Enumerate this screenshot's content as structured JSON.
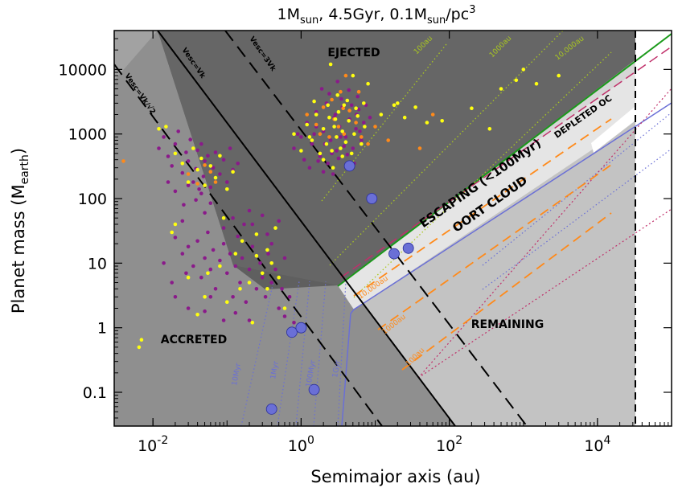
{
  "title": {
    "main": "1M",
    "sub1": "sun",
    "mid": ", 4.5Gyr, 0.1M",
    "sub2": "sun",
    "tail": "/pc",
    "sup": "3"
  },
  "chart_data": {
    "type": "scatter",
    "title": "1M_sun, 4.5Gyr, 0.1M_sun/pc^3",
    "xlabel": "Semimajor axis (au)",
    "ylabel_main": "Planet mass (M",
    "ylabel_sub": "earth",
    "ylabel_close": ")",
    "xscale": "log",
    "yscale": "log",
    "xlim": [
      0.003,
      100000
    ],
    "ylim": [
      0.03,
      40000
    ],
    "x_ticks": [
      {
        "base": "10",
        "exp": "-2",
        "value": 0.01
      },
      {
        "base": "10",
        "exp": "0",
        "value": 1
      },
      {
        "base": "10",
        "exp": "2",
        "value": 100
      },
      {
        "base": "10",
        "exp": "4",
        "value": 10000
      }
    ],
    "y_ticks": [
      {
        "label": "0.1",
        "value": 0.1
      },
      {
        "label": "1",
        "value": 1
      },
      {
        "label": "10",
        "value": 10
      },
      {
        "label": "100",
        "value": 100
      },
      {
        "label": "1000",
        "value": 1000
      },
      {
        "label": "10000",
        "value": 10000
      }
    ],
    "regions": {
      "ejected": "EJECTED",
      "escaping": "ESCAPING (<100Myr)",
      "depleted": "DEPLETED OC",
      "oort": "OORT CLOUD",
      "remaining": "REMAINING",
      "accreted": "ACCRETED"
    },
    "line_labels": {
      "vesc_vk": "Vesc=Vk",
      "vesc_3vk": "Vesc=3Vk",
      "vesc_vk_sqrt2": "Vesc=Vk/√2",
      "green": [
        "100au",
        "1000au",
        "10,000au"
      ],
      "orange": [
        "10,000au",
        "1000au",
        "100au"
      ],
      "blue": [
        "10Myr",
        "1Myr",
        "100Myr",
        "1Gyr"
      ]
    },
    "series": [
      {
        "name": "blue_planets",
        "color": "#6a6fd6",
        "points": [
          [
            0.4,
            0.055
          ],
          [
            0.75,
            0.85
          ],
          [
            1.0,
            1.0
          ],
          [
            1.5,
            0.11
          ],
          [
            4.5,
            320
          ],
          [
            9,
            100
          ],
          [
            18,
            14
          ],
          [
            28,
            17
          ]
        ]
      },
      {
        "name": "purple_points",
        "color": "#8a1a8a",
        "points": [
          [
            0.012,
            600
          ],
          [
            0.014,
            900
          ],
          [
            0.016,
            450
          ],
          [
            0.018,
            320
          ],
          [
            0.02,
            700
          ],
          [
            0.022,
            1100
          ],
          [
            0.025,
            250
          ],
          [
            0.028,
            520
          ],
          [
            0.03,
            380
          ],
          [
            0.032,
            820
          ],
          [
            0.035,
            180
          ],
          [
            0.038,
            290
          ],
          [
            0.04,
            560
          ],
          [
            0.042,
            140
          ],
          [
            0.045,
            700
          ],
          [
            0.048,
            220
          ],
          [
            0.05,
            380
          ],
          [
            0.055,
            460
          ],
          [
            0.06,
            150
          ],
          [
            0.065,
            300
          ],
          [
            0.07,
            520
          ],
          [
            0.08,
            240
          ],
          [
            0.09,
            400
          ],
          [
            0.1,
            180
          ],
          [
            0.11,
            600
          ],
          [
            0.12,
            280
          ],
          [
            0.14,
            350
          ],
          [
            0.016,
            180
          ],
          [
            0.02,
            130
          ],
          [
            0.026,
            80
          ],
          [
            0.03,
            160
          ],
          [
            0.038,
            95
          ],
          [
            0.045,
            120
          ],
          [
            0.06,
            85
          ],
          [
            0.02,
            25
          ],
          [
            0.025,
            14
          ],
          [
            0.03,
            18
          ],
          [
            0.035,
            9
          ],
          [
            0.04,
            22
          ],
          [
            0.045,
            6
          ],
          [
            0.05,
            12
          ],
          [
            0.055,
            30
          ],
          [
            0.06,
            8
          ],
          [
            0.065,
            16
          ],
          [
            0.07,
            4
          ],
          [
            0.08,
            11
          ],
          [
            0.09,
            20
          ],
          [
            0.1,
            7
          ],
          [
            0.11,
            14
          ],
          [
            0.12,
            3
          ],
          [
            0.13,
            9
          ],
          [
            0.14,
            26
          ],
          [
            0.15,
            5
          ],
          [
            0.16,
            12
          ],
          [
            0.18,
            2.5
          ],
          [
            0.2,
            8
          ],
          [
            0.22,
            18
          ],
          [
            0.25,
            4
          ],
          [
            0.28,
            10
          ],
          [
            0.3,
            6
          ],
          [
            0.33,
            3
          ],
          [
            0.36,
            14
          ],
          [
            0.4,
            5
          ],
          [
            0.45,
            8
          ],
          [
            0.5,
            2
          ],
          [
            0.55,
            4
          ],
          [
            0.6,
            1.5
          ],
          [
            0.7,
            3
          ],
          [
            0.8,
            1.2
          ],
          [
            0.22,
            40
          ],
          [
            0.3,
            55
          ],
          [
            0.35,
            28
          ],
          [
            0.4,
            20
          ],
          [
            0.5,
            45
          ],
          [
            0.6,
            12
          ],
          [
            0.025,
            45
          ],
          [
            0.05,
            60
          ],
          [
            0.09,
            35
          ],
          [
            0.12,
            50
          ],
          [
            0.17,
            40
          ],
          [
            0.2,
            65
          ],
          [
            0.014,
            10
          ],
          [
            0.018,
            5
          ],
          [
            0.02,
            3
          ],
          [
            0.028,
            7
          ],
          [
            0.03,
            2
          ],
          [
            0.05,
            1.8
          ],
          [
            0.06,
            3
          ],
          [
            0.09,
            1.3
          ],
          [
            0.13,
            1.7
          ],
          [
            0.2,
            1.3
          ],
          [
            0.8,
            600
          ],
          [
            1.0,
            900
          ],
          [
            1.2,
            1500
          ],
          [
            1.4,
            700
          ],
          [
            1.6,
            2200
          ],
          [
            1.8,
            450
          ],
          [
            2.0,
            1100
          ],
          [
            2.2,
            3000
          ],
          [
            2.5,
            800
          ],
          [
            2.8,
            1800
          ],
          [
            3.0,
            550
          ],
          [
            3.3,
            1300
          ],
          [
            3.6,
            2600
          ],
          [
            4.0,
            900
          ],
          [
            4.5,
            1700
          ],
          [
            5.0,
            600
          ],
          [
            5.5,
            1200
          ],
          [
            6.0,
            2400
          ],
          [
            6.5,
            800
          ],
          [
            7.0,
            1500
          ],
          [
            1.1,
            400
          ],
          [
            1.3,
            300
          ],
          [
            1.5,
            1000
          ],
          [
            1.7,
            380
          ],
          [
            2.3,
            350
          ],
          [
            2.6,
            500
          ],
          [
            3.2,
            420
          ],
          [
            3.8,
            650
          ],
          [
            4.2,
            480
          ],
          [
            5.2,
            350
          ],
          [
            1.9,
            5000
          ],
          [
            2.4,
            4200
          ],
          [
            3.1,
            6500
          ],
          [
            3.5,
            3500
          ],
          [
            4.4,
            4800
          ],
          [
            5.8,
            3800
          ],
          [
            7.5,
            2800
          ],
          [
            8.5,
            1800
          ],
          [
            2.1,
            700
          ],
          [
            2.9,
            2000
          ],
          [
            3.4,
            900
          ],
          [
            4.8,
            2800
          ],
          [
            6.2,
            1100
          ],
          [
            1.6,
            1300
          ],
          [
            0.9,
            1000
          ],
          [
            2.0,
            260
          ],
          [
            2.7,
            240
          ],
          [
            4.1,
            300
          ],
          [
            5.6,
            2000
          ],
          [
            3.7,
            1050
          ]
        ]
      },
      {
        "name": "yellow_points",
        "color": "#ffff10",
        "points": [
          [
            0.0065,
            0.5
          ],
          [
            0.007,
            0.65
          ],
          [
            0.015,
            1300
          ],
          [
            0.02,
            500
          ],
          [
            0.025,
            350
          ],
          [
            0.03,
            180
          ],
          [
            0.035,
            600
          ],
          [
            0.04,
            280
          ],
          [
            0.045,
            420
          ],
          [
            0.05,
            160
          ],
          [
            0.06,
            320
          ],
          [
            0.07,
            210
          ],
          [
            0.08,
            460
          ],
          [
            0.1,
            140
          ],
          [
            0.12,
            260
          ],
          [
            0.03,
            6
          ],
          [
            0.05,
            3
          ],
          [
            0.08,
            9
          ],
          [
            0.1,
            2.5
          ],
          [
            0.13,
            14
          ],
          [
            0.16,
            22
          ],
          [
            0.2,
            5
          ],
          [
            0.25,
            13
          ],
          [
            0.3,
            7
          ],
          [
            0.35,
            4
          ],
          [
            0.4,
            10
          ],
          [
            0.5,
            6
          ],
          [
            0.6,
            2
          ],
          [
            0.25,
            28
          ],
          [
            0.35,
            16
          ],
          [
            0.45,
            35
          ],
          [
            0.055,
            7
          ],
          [
            0.09,
            50
          ],
          [
            0.02,
            40
          ],
          [
            0.012,
            1200
          ],
          [
            0.018,
            30
          ],
          [
            0.04,
            1.6
          ],
          [
            0.15,
            4
          ],
          [
            0.22,
            1.2
          ],
          [
            0.8,
            1000
          ],
          [
            1.0,
            550
          ],
          [
            1.2,
            1400
          ],
          [
            1.4,
            800
          ],
          [
            1.6,
            2000
          ],
          [
            1.8,
            500
          ],
          [
            2.0,
            1200
          ],
          [
            2.2,
            700
          ],
          [
            2.4,
            1800
          ],
          [
            2.6,
            550
          ],
          [
            2.8,
            1300
          ],
          [
            3.0,
            900
          ],
          [
            3.2,
            2200
          ],
          [
            3.4,
            600
          ],
          [
            3.6,
            1100
          ],
          [
            3.8,
            2800
          ],
          [
            4.0,
            750
          ],
          [
            4.4,
            1600
          ],
          [
            4.8,
            500
          ],
          [
            5.2,
            1000
          ],
          [
            5.8,
            1900
          ],
          [
            6.5,
            700
          ],
          [
            7.2,
            1300
          ],
          [
            1.5,
            3200
          ],
          [
            2.3,
            2800
          ],
          [
            3.1,
            4000
          ],
          [
            4.2,
            3300
          ],
          [
            5.5,
            2500
          ],
          [
            2.0,
            400
          ],
          [
            2.7,
            300
          ],
          [
            3.6,
            450
          ],
          [
            7.0,
            3000
          ],
          [
            12,
            2000
          ],
          [
            18,
            2800
          ],
          [
            25,
            1800
          ],
          [
            35,
            2600
          ],
          [
            50,
            1500
          ],
          [
            2.5,
            12000
          ],
          [
            5,
            8000
          ],
          [
            8,
            6000
          ],
          [
            20,
            3000
          ],
          [
            80,
            1600
          ],
          [
            200,
            2500
          ],
          [
            350,
            1200
          ],
          [
            500,
            5000
          ],
          [
            800,
            6800
          ],
          [
            1000,
            10000
          ],
          [
            1500,
            6000
          ],
          [
            3000,
            8000
          ],
          [
            1.3,
            900
          ],
          [
            2.9,
            1700
          ]
        ]
      },
      {
        "name": "orange_points",
        "color": "#ff8a1a",
        "points": [
          [
            0.004,
            380
          ],
          [
            0.03,
            240
          ],
          [
            0.04,
            170
          ],
          [
            0.05,
            330
          ],
          [
            0.06,
            260
          ],
          [
            0.07,
            180
          ],
          [
            1.2,
            2000
          ],
          [
            1.6,
            1400
          ],
          [
            2.0,
            2600
          ],
          [
            2.4,
            900
          ],
          [
            2.8,
            1700
          ],
          [
            3.2,
            1300
          ],
          [
            3.8,
            1000
          ],
          [
            4.5,
            2300
          ],
          [
            5.5,
            1500
          ],
          [
            6.5,
            900
          ],
          [
            2.6,
            3400
          ],
          [
            1.8,
            1000
          ],
          [
            3.4,
            4500
          ],
          [
            10,
            1300
          ],
          [
            15,
            800
          ],
          [
            40,
            600
          ],
          [
            60,
            2000
          ],
          [
            4,
            8000
          ],
          [
            6,
            4500
          ],
          [
            8,
            700
          ],
          [
            3.7,
            2500
          ]
        ]
      }
    ]
  }
}
